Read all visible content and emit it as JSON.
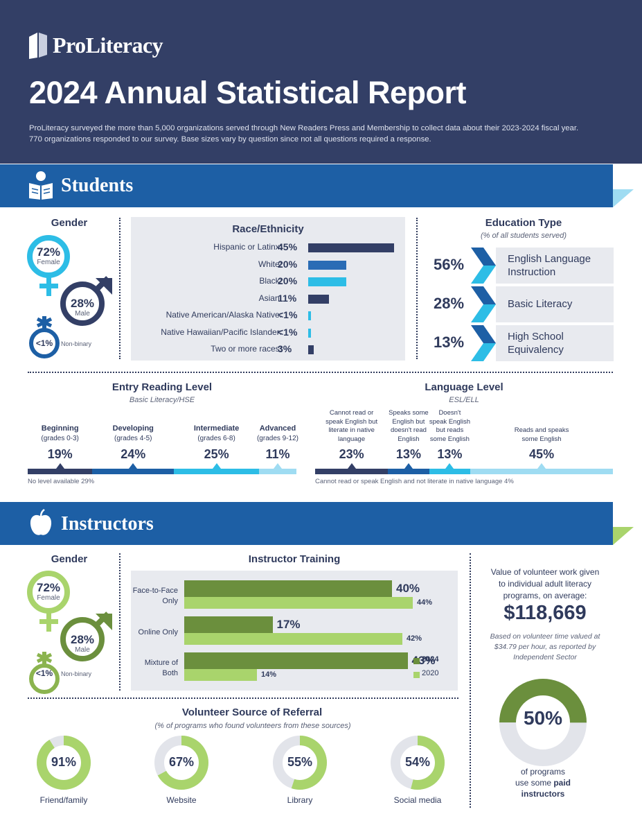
{
  "header": {
    "logo_text": "ProLiteracy",
    "title": "2024 Annual Statistical Report",
    "intro_line1": "ProLiteracy surveyed the more than 5,000 organizations served through New Readers Press and Membership to collect data about their 2023-2024 fiscal year.",
    "intro_line2": "770 organizations responded to our survey. Base sizes vary by question since not all questions required a response."
  },
  "students": {
    "section_title": "Students",
    "gender": {
      "heading": "Gender",
      "female_pct": "72%",
      "female_label": "Female",
      "male_pct": "28%",
      "male_label": "Male",
      "nonbinary_pct": "<1%",
      "nonbinary_label": "Non-binary"
    },
    "race": {
      "heading": "Race/Ethnicity",
      "rows": [
        {
          "label": "Hispanic or Latinx:",
          "value": "45%",
          "pct": 45
        },
        {
          "label": "White:",
          "value": "20%",
          "pct": 20
        },
        {
          "label": "Black:",
          "value": "20%",
          "pct": 20
        },
        {
          "label": "Asian:",
          "value": "11%",
          "pct": 11
        },
        {
          "label": "Native American/Alaska Native:",
          "value": "<1%",
          "pct": 1
        },
        {
          "label": "Native Hawaiian/Pacific Islander:",
          "value": "<1%",
          "pct": 1
        },
        {
          "label": "Two or more races:",
          "value": "3%",
          "pct": 3
        }
      ]
    },
    "education": {
      "heading": "Education Type",
      "subheading": "(% of all students served)",
      "rows": [
        {
          "value": "56%",
          "line1": "English Language",
          "line2": "Instruction"
        },
        {
          "value": "28%",
          "line1": "Basic Literacy",
          "line2": ""
        },
        {
          "value": "13%",
          "line1": "High School",
          "line2": "Equivalency"
        }
      ]
    },
    "entry_level": {
      "heading": "Entry Reading Level",
      "subheading": "Basic Literacy/HSE",
      "levels": [
        {
          "name": "Beginning",
          "grades": "(grades 0-3)",
          "value": "19%",
          "pct": 19
        },
        {
          "name": "Developing",
          "grades": "(grades 4-5)",
          "value": "24%",
          "pct": 24
        },
        {
          "name": "Intermediate",
          "grades": "(grades 6-8)",
          "value": "25%",
          "pct": 25
        },
        {
          "name": "Advanced",
          "grades": "(grades 9-12)",
          "value": "11%",
          "pct": 11
        }
      ],
      "note": "No level available 29%"
    },
    "language_level": {
      "heading": "Language Level",
      "subheading": "ESL/ELL",
      "levels": [
        {
          "line1": "Cannot read or",
          "line2": "speak English but",
          "line3": "literate in native",
          "line4": "language",
          "value": "23%",
          "pct": 23
        },
        {
          "line1": "Speaks some",
          "line2": "English but",
          "line3": "doesn't read",
          "line4": "English",
          "value": "13%",
          "pct": 13
        },
        {
          "line1": "Doesn't",
          "line2": "speak English",
          "line3": "but reads",
          "line4": "some English",
          "value": "13%",
          "pct": 13
        },
        {
          "line1": "Reads and speaks",
          "line2": "some English",
          "line3": "",
          "line4": "",
          "value": "45%",
          "pct": 45
        }
      ],
      "note": "Cannot read or speak English and not literate in native language 4%"
    }
  },
  "instructors": {
    "section_title": "Instructors",
    "gender": {
      "heading": "Gender",
      "female_pct": "72%",
      "female_label": "Female",
      "male_pct": "28%",
      "male_label": "Male",
      "nonbinary_pct": "<1%",
      "nonbinary_label": "Non-binary"
    },
    "training": {
      "heading": "Instructor Training",
      "legend_2024": "2024",
      "legend_2020": "2020",
      "rows": [
        {
          "line1": "Face-to-Face",
          "line2": "Only",
          "v2024": "40%",
          "p2024": 40,
          "v2020": "44%",
          "p2020": 44
        },
        {
          "line1": "Online Only",
          "line2": "",
          "v2024": "17%",
          "p2024": 17,
          "v2020": "42%",
          "p2020": 42
        },
        {
          "line1": "Mixture of",
          "line2": "Both",
          "v2024": "43%",
          "p2024": 43,
          "v2020": "14%",
          "p2020": 14
        }
      ]
    },
    "volunteer_value": {
      "line1": "Value of volunteer work given",
      "line2": "to individual adult literacy",
      "line3": "programs, on average:",
      "amount": "$118,669",
      "note1": "Based on volunteer time valued at",
      "note2": "$34.79 per hour, as reported by",
      "note3": "Independent Sector"
    },
    "paid": {
      "value": "50%",
      "pct": 50,
      "line1": "of programs",
      "line2": "use some",
      "line2_bold": "paid",
      "line3": "instructors"
    },
    "referral": {
      "heading": "Volunteer Source of Referral",
      "subheading": "(% of programs who found volunteers from these sources)",
      "items": [
        {
          "value": "91%",
          "pct": 91,
          "label": "Friend/family"
        },
        {
          "value": "67%",
          "pct": 67,
          "label": "Website"
        },
        {
          "value": "55%",
          "pct": 55,
          "label": "Library"
        },
        {
          "value": "54%",
          "pct": 54,
          "label": "Social media"
        }
      ]
    }
  },
  "colors": {
    "navy": "#333f66",
    "blue": "#1d5fa5",
    "mid_blue": "#2a6cb5",
    "cyan": "#2dbde6",
    "light_cyan": "#9fdcf2",
    "dark_green": "#6b8f3d",
    "light_green": "#a9d46c",
    "grey": "#e8eaef"
  }
}
